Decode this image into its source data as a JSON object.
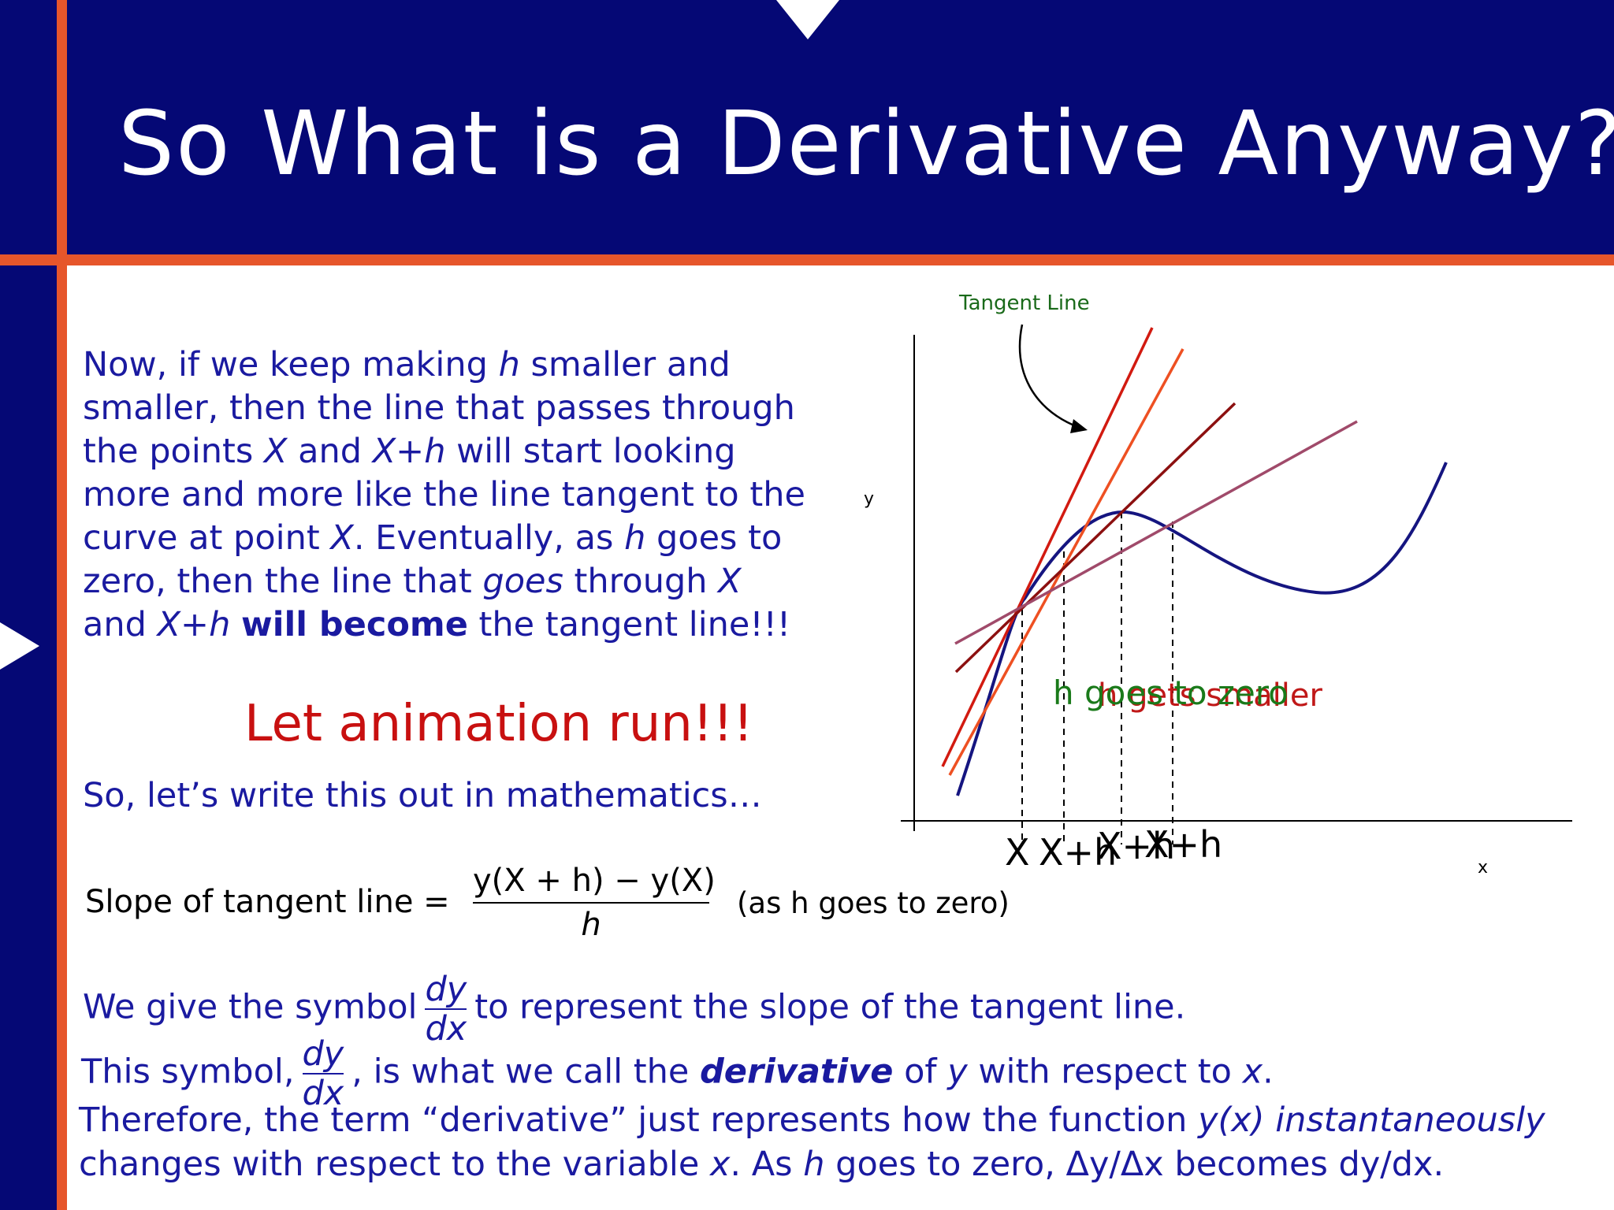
{
  "slide": {
    "title": "So What is a Derivative Anyway?",
    "paragraph": {
      "t1": "Now, if we keep making ",
      "h1": "h",
      "t2": " smaller and smaller, then the line that passes through the points ",
      "x1": "X",
      "t3": " and ",
      "xh1": "X+h",
      "t4": " will start looking more and more like the line tangent to the curve at point ",
      "x2": "X",
      "t5": ".  Eventually, as ",
      "h2": "h",
      "t6": " goes to zero, then the line that ",
      "goes": "goes",
      "t7": " through ",
      "x3": "X",
      "t8": " and ",
      "xh2": "X+h",
      "t9": " ",
      "bold": "will  become",
      "t10": " the tangent line!!!"
    },
    "animate": "Let animation run!!!",
    "write": "So, let’s write this out in mathematics…",
    "slope_label": "Slope of tangent line =",
    "slope_numerator": "y(X + h) − y(X)",
    "slope_denominator": "h",
    "slope_note": "(as h goes to zero)",
    "symbol_line": {
      "pre": "We give the symbol",
      "num": "dy",
      "den": "dx",
      "post": "to represent the slope of the tangent line."
    },
    "derivative_line": {
      "pre": "This symbol,",
      "num": "dy",
      "den": "dx",
      "mid": ", is what we call the ",
      "bold": "derivative",
      "of": " of ",
      "y": "y",
      "wrt": " with respect to ",
      "x": "x",
      "end": "."
    },
    "therefore": {
      "a": "Therefore, the term “derivative” just represents how the function ",
      "yx": "y(x) instantaneously",
      "b": "changes with respect to the variable ",
      "x": "x",
      "c": ".  As ",
      "h": "h",
      "d": " goes to zero, Δy/Δx becomes dy/dx."
    }
  },
  "diagram": {
    "tangent_label": "Tangent Line",
    "y_axis_label": "y",
    "x_axis_label": "x",
    "point_labels": [
      "X",
      "X+h",
      "X+h",
      "X+h"
    ],
    "h_green": "h goes to zero",
    "h_red": "h gets smaller",
    "colors": {
      "curve": "#151580",
      "tangent": "#d21a10",
      "secant1": "#ee5022",
      "secant2": "#8c1010",
      "secant3": "#a04a6a",
      "green": "#1a7a1a",
      "red": "#c01818"
    }
  }
}
